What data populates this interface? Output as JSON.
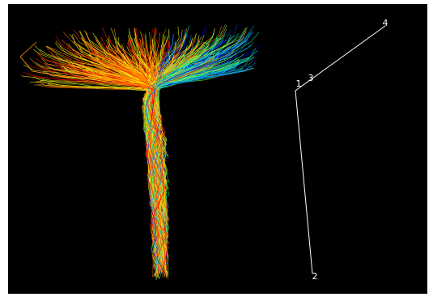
{
  "markers": [
    {
      "label": "1"
    },
    {
      "label": "2"
    },
    {
      "label": "3"
    },
    {
      "label": "4"
    }
  ]
}
